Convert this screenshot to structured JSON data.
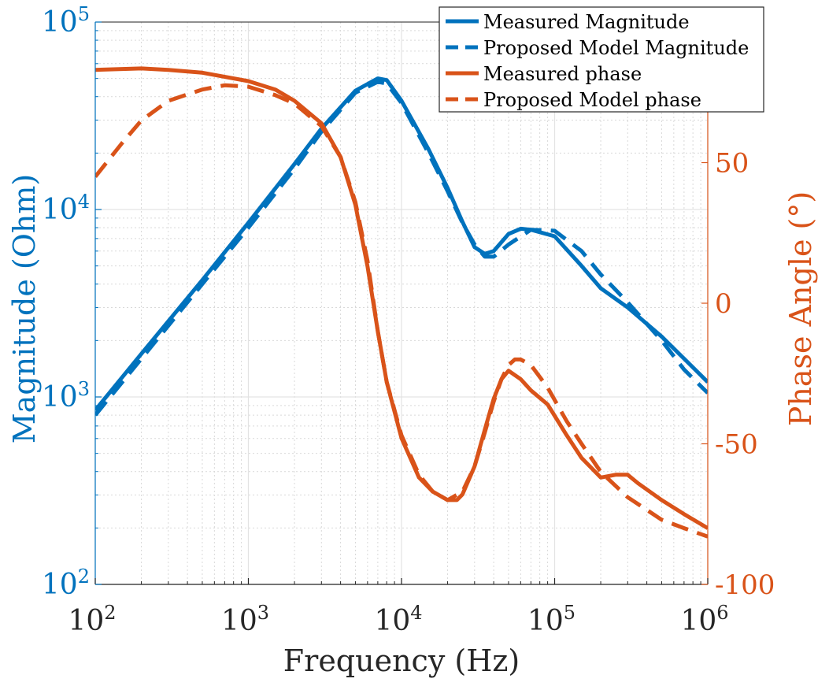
{
  "chart_data": {
    "type": "line",
    "xlabel": "Frequency (Hz)",
    "ylabel_left": "Magnitude (Ohm)",
    "ylabel_right": "Phase Angle (°)",
    "x_scale": "log",
    "y_left_scale": "log",
    "xlim": [
      100,
      1000000
    ],
    "ylim_left": [
      100,
      100000
    ],
    "ylim_right": [
      -100,
      100
    ],
    "x_ticks": [
      {
        "value": 100,
        "base": "10",
        "exp": "2"
      },
      {
        "value": 1000,
        "base": "10",
        "exp": "3"
      },
      {
        "value": 10000,
        "base": "10",
        "exp": "4"
      },
      {
        "value": 100000,
        "base": "10",
        "exp": "5"
      },
      {
        "value": 1000000,
        "base": "10",
        "exp": "6"
      }
    ],
    "y_left_ticks": [
      {
        "value": 100,
        "base": "10",
        "exp": "2"
      },
      {
        "value": 1000,
        "base": "10",
        "exp": "3"
      },
      {
        "value": 10000,
        "base": "10",
        "exp": "4"
      },
      {
        "value": 100000,
        "base": "10",
        "exp": "5"
      }
    ],
    "y_right_ticks": [
      {
        "value": -100,
        "label": "-100"
      },
      {
        "value": -50,
        "label": "-50"
      },
      {
        "value": 0,
        "label": "0"
      },
      {
        "value": 50,
        "label": "50"
      }
    ],
    "grid": true,
    "legend_position": "top-right",
    "colors": {
      "magnitude": "#0072BD",
      "phase": "#D95319"
    },
    "series": [
      {
        "name": "Measured Magnitude",
        "axis": "left",
        "color": "#0072BD",
        "dash": false,
        "points": [
          [
            100,
            850
          ],
          [
            200,
            1700
          ],
          [
            500,
            4200
          ],
          [
            1000,
            8500
          ],
          [
            2000,
            17500
          ],
          [
            3000,
            27000
          ],
          [
            5000,
            43000
          ],
          [
            7000,
            50000
          ],
          [
            8000,
            49000
          ],
          [
            10000,
            38000
          ],
          [
            15000,
            21000
          ],
          [
            20000,
            13000
          ],
          [
            25000,
            8600
          ],
          [
            30000,
            6300
          ],
          [
            35000,
            5800
          ],
          [
            40000,
            6000
          ],
          [
            50000,
            7400
          ],
          [
            60000,
            7900
          ],
          [
            70000,
            7800
          ],
          [
            100000,
            7200
          ],
          [
            150000,
            5000
          ],
          [
            200000,
            3800
          ],
          [
            300000,
            3000
          ],
          [
            500000,
            2100
          ],
          [
            700000,
            1600
          ],
          [
            1000000,
            1200
          ]
        ]
      },
      {
        "name": "Proposed Model Magnitude",
        "axis": "left",
        "color": "#0072BD",
        "dash": true,
        "points": [
          [
            100,
            800
          ],
          [
            200,
            1600
          ],
          [
            500,
            4000
          ],
          [
            1000,
            8000
          ],
          [
            2000,
            16500
          ],
          [
            3000,
            26000
          ],
          [
            5000,
            42000
          ],
          [
            7000,
            48000
          ],
          [
            8000,
            47000
          ],
          [
            10000,
            37000
          ],
          [
            15000,
            20000
          ],
          [
            20000,
            12500
          ],
          [
            25000,
            8500
          ],
          [
            30000,
            6500
          ],
          [
            35000,
            5600
          ],
          [
            40000,
            5600
          ],
          [
            50000,
            6500
          ],
          [
            70000,
            7800
          ],
          [
            100000,
            7700
          ],
          [
            150000,
            6000
          ],
          [
            200000,
            4500
          ],
          [
            300000,
            3200
          ],
          [
            500000,
            2000
          ],
          [
            700000,
            1400
          ],
          [
            1000000,
            1050
          ]
        ]
      },
      {
        "name": "Measured phase",
        "axis": "right",
        "color": "#D95319",
        "dash": false,
        "points": [
          [
            100,
            83
          ],
          [
            200,
            83.5
          ],
          [
            300,
            83
          ],
          [
            500,
            82
          ],
          [
            1000,
            79
          ],
          [
            1500,
            76
          ],
          [
            2000,
            72
          ],
          [
            3000,
            64
          ],
          [
            4000,
            52
          ],
          [
            5000,
            35
          ],
          [
            6000,
            13
          ],
          [
            7000,
            -10
          ],
          [
            8000,
            -28
          ],
          [
            10000,
            -48
          ],
          [
            13000,
            -62
          ],
          [
            16000,
            -67
          ],
          [
            20000,
            -70
          ],
          [
            23000,
            -70
          ],
          [
            25000,
            -68
          ],
          [
            30000,
            -58
          ],
          [
            35000,
            -45
          ],
          [
            40000,
            -34
          ],
          [
            45000,
            -27
          ],
          [
            50000,
            -24
          ],
          [
            60000,
            -27
          ],
          [
            70000,
            -31
          ],
          [
            90000,
            -36
          ],
          [
            120000,
            -47
          ],
          [
            150000,
            -55
          ],
          [
            200000,
            -62
          ],
          [
            250000,
            -61
          ],
          [
            300000,
            -61
          ],
          [
            350000,
            -64
          ],
          [
            500000,
            -70
          ],
          [
            700000,
            -75
          ],
          [
            1000000,
            -80
          ]
        ]
      },
      {
        "name": "Proposed Model phase",
        "axis": "right",
        "color": "#D95319",
        "dash": true,
        "points": [
          [
            100,
            45
          ],
          [
            150,
            57
          ],
          [
            200,
            65
          ],
          [
            300,
            72
          ],
          [
            500,
            76
          ],
          [
            700,
            77.5
          ],
          [
            1000,
            77
          ],
          [
            1500,
            74
          ],
          [
            2000,
            71
          ],
          [
            3000,
            63
          ],
          [
            4000,
            52
          ],
          [
            5000,
            36
          ],
          [
            6000,
            15
          ],
          [
            7000,
            -10
          ],
          [
            8000,
            -28
          ],
          [
            10000,
            -47
          ],
          [
            13000,
            -61
          ],
          [
            16000,
            -67
          ],
          [
            20000,
            -70
          ],
          [
            25000,
            -67
          ],
          [
            30000,
            -58
          ],
          [
            35000,
            -46
          ],
          [
            40000,
            -35
          ],
          [
            45000,
            -27
          ],
          [
            50000,
            -22
          ],
          [
            55000,
            -20
          ],
          [
            60000,
            -20
          ],
          [
            70000,
            -22
          ],
          [
            90000,
            -30
          ],
          [
            120000,
            -42
          ],
          [
            150000,
            -50
          ],
          [
            200000,
            -60
          ],
          [
            300000,
            -69
          ],
          [
            500000,
            -77
          ],
          [
            700000,
            -80
          ],
          [
            1000000,
            -83
          ]
        ]
      }
    ]
  }
}
